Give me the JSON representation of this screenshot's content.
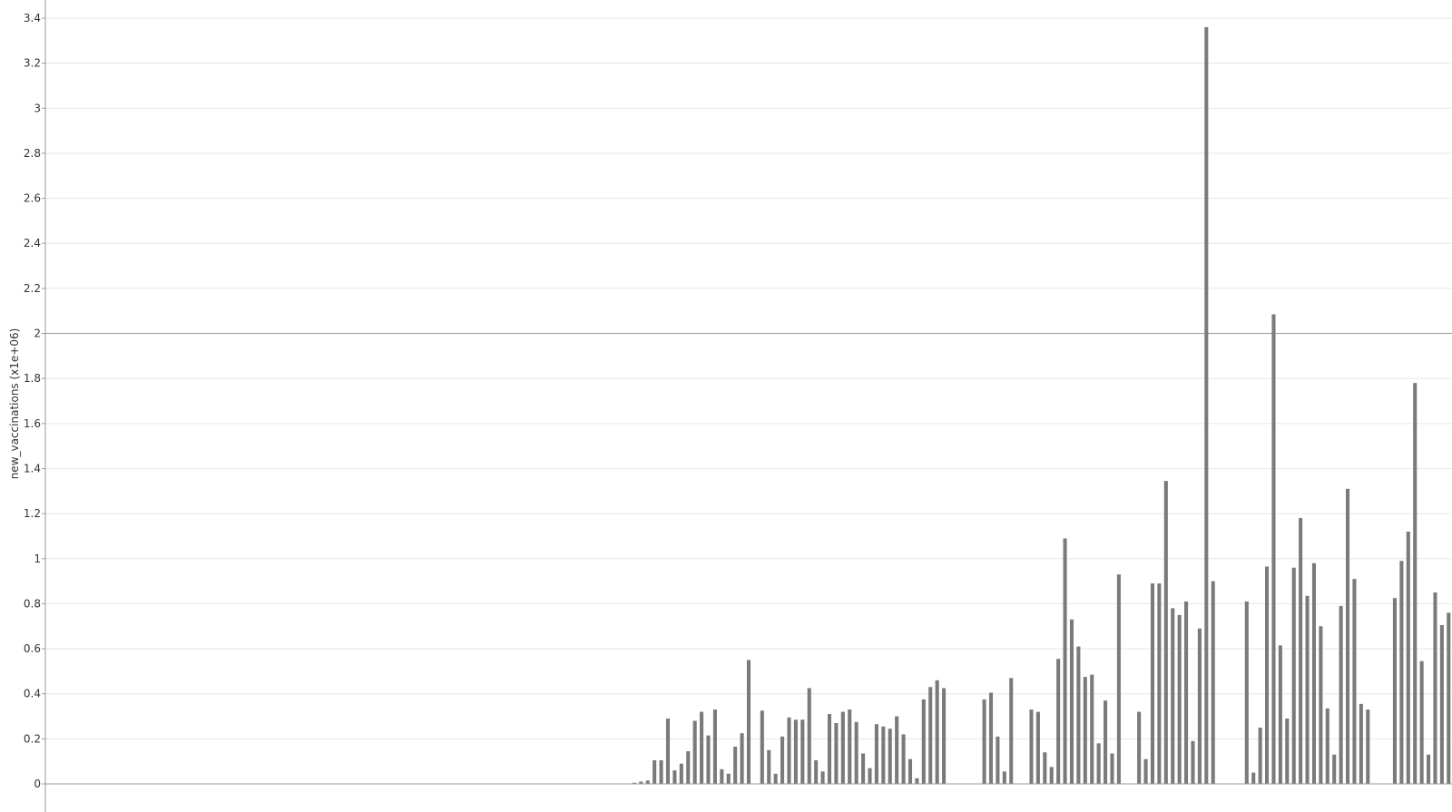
{
  "chart_data": {
    "type": "bar",
    "title": "",
    "xlabel": "",
    "ylabel": "new_vaccinations (x1e+06)",
    "ylim": [
      0,
      3.4
    ],
    "yticks": [
      "0",
      "0.2",
      "0.4",
      "0.6",
      "0.8",
      "1",
      "1.2",
      "1.4",
      "1.6",
      "1.8",
      "2",
      "2.2",
      "2.4",
      "2.6",
      "2.8",
      "3",
      "3.2",
      "3.4"
    ],
    "reference_line": 2,
    "grid": true,
    "bar_color": "#7a7a7a",
    "grid_color": "#e6e6e6",
    "reference_line_color": "#aaaaaa",
    "series": [
      {
        "values": [
          0,
          0,
          0,
          0,
          0,
          0,
          0,
          0,
          0,
          0,
          0,
          0,
          0,
          0,
          0,
          0,
          0,
          0,
          0,
          0,
          0,
          0,
          0,
          0,
          0,
          0,
          0,
          0,
          0,
          0,
          0,
          0,
          0,
          0,
          0,
          0,
          0,
          0,
          0,
          0,
          0,
          0,
          0,
          0,
          0,
          0,
          0,
          0,
          0,
          0,
          0,
          0,
          0,
          0,
          0,
          0,
          0,
          0,
          0,
          0,
          0,
          0,
          0,
          0,
          0,
          0,
          0,
          0,
          0,
          0,
          0,
          0,
          0,
          0,
          0,
          0,
          0,
          0,
          0,
          0,
          0,
          0,
          0,
          0,
          0,
          0,
          0,
          0.005,
          0.01,
          0.015,
          0.105,
          0.105,
          0.29,
          0.06,
          0.09,
          0.145,
          0.28,
          0.32,
          0.215,
          0.33,
          0.065,
          0.045,
          0.165,
          0.225,
          0.55,
          0,
          0.325,
          0.15,
          0.045,
          0.21,
          0.295,
          0.285,
          0.285,
          0.425,
          0.105,
          0.055,
          0.31,
          0.27,
          0.32,
          0.33,
          0.275,
          0.135,
          0.07,
          0.265,
          0.255,
          0.245,
          0.3,
          0.22,
          0.11,
          0.025,
          0.375,
          0.43,
          0.46,
          0.425,
          0,
          0,
          0,
          0,
          0,
          0.375,
          0.405,
          0.21,
          0.055,
          0.47,
          0,
          0,
          0.33,
          0.32,
          0.14,
          0.075,
          0.555,
          1.09,
          0.73,
          0.61,
          0.475,
          0.485,
          0.18,
          0.37,
          0.135,
          0.93,
          0,
          0,
          0.32,
          0.11,
          0.89,
          0.89,
          1.345,
          0.78,
          0.75,
          0.81,
          0.19,
          0.69,
          3.36,
          0.9,
          0,
          0,
          0,
          0,
          0.81,
          0.05,
          0.25,
          0.965,
          2.085,
          0.615,
          0.29,
          0.96,
          1.18,
          0.835,
          0.98,
          0.7,
          0.335,
          0.13,
          0.79,
          1.31,
          0.91,
          0.355,
          0.33,
          0,
          0,
          0,
          0.825,
          0.99,
          1.12,
          1.78,
          0.545,
          0.13,
          0.85,
          0.705,
          0.76
        ]
      }
    ]
  }
}
